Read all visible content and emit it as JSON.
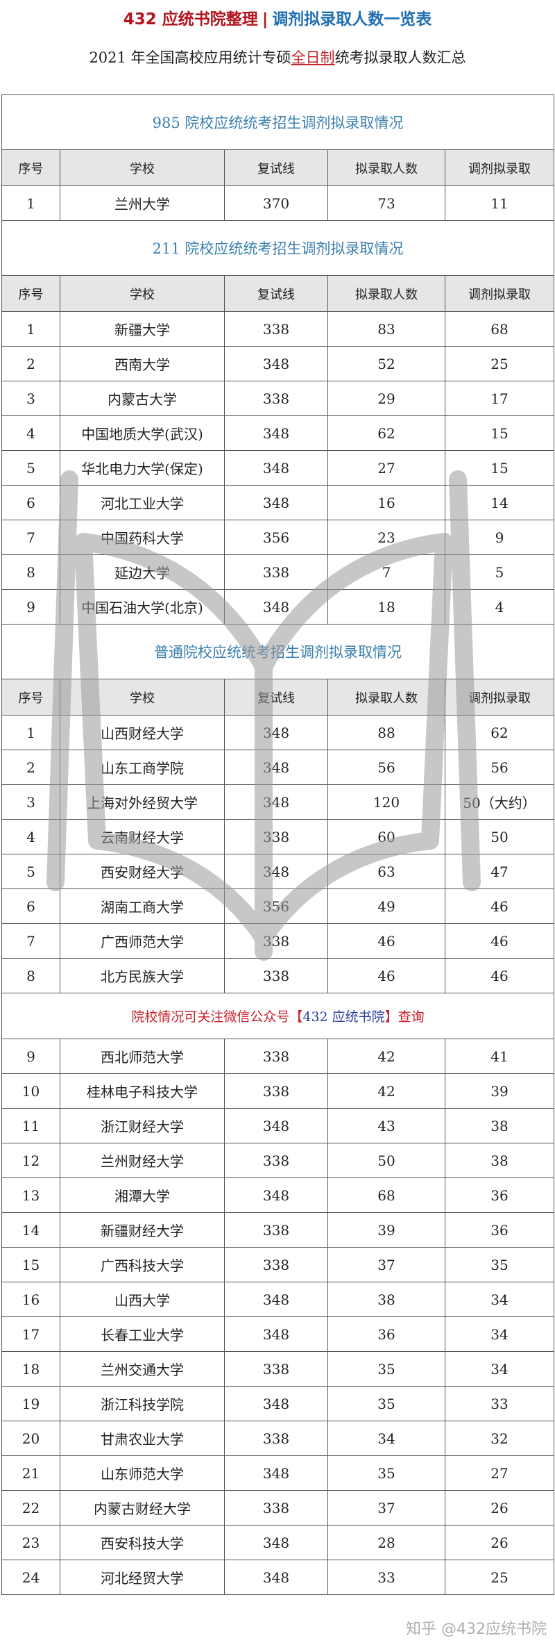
{
  "header": {
    "title_left": "432 应统书院整理",
    "title_sep": "|",
    "title_right": "调剂拟录取人数一览表",
    "subtitle_pre": "2021 年全国高校应用统计专硕",
    "subtitle_highlight": "全日制",
    "subtitle_post": "统考拟录取人数汇总"
  },
  "columns": [
    "序号",
    "学校",
    "复试线",
    "拟录取人数",
    "调剂拟录取"
  ],
  "sections": [
    {
      "title": "985 院校应统统考招生调剂拟录取情况",
      "rows": [
        [
          "1",
          "兰州大学",
          "370",
          "73",
          "11"
        ]
      ]
    },
    {
      "title": "211 院校应统统考招生调剂拟录取情况",
      "rows": [
        [
          "1",
          "新疆大学",
          "338",
          "83",
          "68"
        ],
        [
          "2",
          "西南大学",
          "348",
          "52",
          "25"
        ],
        [
          "3",
          "内蒙古大学",
          "338",
          "29",
          "17"
        ],
        [
          "4",
          "中国地质大学(武汉)",
          "348",
          "62",
          "15"
        ],
        [
          "5",
          "华北电力大学(保定)",
          "348",
          "27",
          "15"
        ],
        [
          "6",
          "河北工业大学",
          "348",
          "16",
          "14"
        ],
        [
          "7",
          "中国药科大学",
          "356",
          "23",
          "9"
        ],
        [
          "8",
          "延边大学",
          "338",
          "7",
          "5"
        ],
        [
          "9",
          "中国石油大学(北京)",
          "348",
          "18",
          "4"
        ]
      ]
    },
    {
      "title": "普通院校应统统考招生调剂拟录取情况",
      "rows": [
        [
          "1",
          "山西财经大学",
          "348",
          "88",
          "62"
        ],
        [
          "2",
          "山东工商学院",
          "348",
          "56",
          "56"
        ],
        [
          "3",
          "上海对外经贸大学",
          "348",
          "120",
          "50（大约）"
        ],
        [
          "4",
          "云南财经大学",
          "338",
          "60",
          "50"
        ],
        [
          "5",
          "西安财经大学",
          "348",
          "63",
          "47"
        ],
        [
          "6",
          "湖南工商大学",
          "356",
          "49",
          "46"
        ],
        [
          "7",
          "广西师范大学",
          "338",
          "46",
          "46"
        ],
        [
          "8",
          "北方民族大学",
          "338",
          "46",
          "46"
        ]
      ],
      "note": {
        "pre": "院校情况可关注微信公众号【",
        "mid": "432 应统书院",
        "post": "】查询"
      },
      "rows_after_note": [
        [
          "9",
          "西北师范大学",
          "338",
          "42",
          "41"
        ],
        [
          "10",
          "桂林电子科技大学",
          "338",
          "42",
          "39"
        ],
        [
          "11",
          "浙江财经大学",
          "348",
          "43",
          "38"
        ],
        [
          "12",
          "兰州财经大学",
          "338",
          "50",
          "38"
        ],
        [
          "13",
          "湘潭大学",
          "348",
          "68",
          "36"
        ],
        [
          "14",
          "新疆财经大学",
          "338",
          "39",
          "36"
        ],
        [
          "15",
          "广西科技大学",
          "338",
          "37",
          "35"
        ],
        [
          "16",
          "山西大学",
          "348",
          "38",
          "34"
        ],
        [
          "17",
          "长春工业大学",
          "348",
          "36",
          "34"
        ],
        [
          "18",
          "兰州交通大学",
          "338",
          "35",
          "34"
        ],
        [
          "19",
          "浙江科技学院",
          "348",
          "35",
          "33"
        ],
        [
          "20",
          "甘肃农业大学",
          "338",
          "34",
          "32"
        ],
        [
          "21",
          "山东师范大学",
          "348",
          "35",
          "27"
        ],
        [
          "22",
          "内蒙古财经大学",
          "338",
          "37",
          "26"
        ],
        [
          "23",
          "西安科技大学",
          "348",
          "28",
          "26"
        ],
        [
          "24",
          "河北经贸大学",
          "348",
          "33",
          "25"
        ]
      ]
    }
  ],
  "watermark": {
    "text": "应统书院"
  },
  "zhihu_watermark": "知乎 @432应统书院",
  "colors": {
    "brand_red": "#b3141c",
    "brand_blue": "#1f6fb0",
    "section_blue": "#3b7fae",
    "header_gray": "#e6e6e6"
  }
}
